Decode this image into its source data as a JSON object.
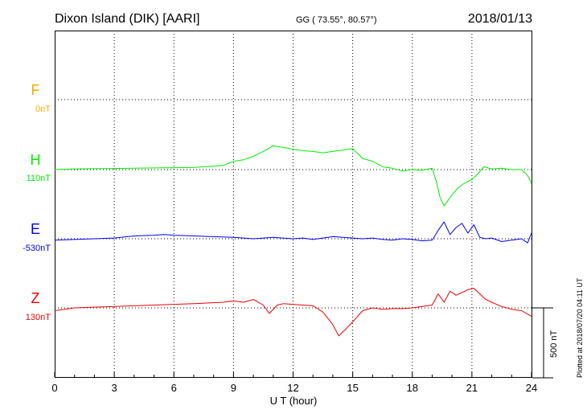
{
  "header": {
    "station": "Dixon Island (DIK)  [AARI]",
    "coords": "GG ( 73.55°,  80.57°)",
    "date": "2018/01/13"
  },
  "footer": {
    "plotted": "Plotted at 2018/07/20 04:11 UT"
  },
  "chart_data": {
    "type": "line",
    "xlabel": "U T (hour)",
    "xlim": [
      0,
      24
    ],
    "xticks": [
      "0",
      "3",
      "6",
      "9",
      "12",
      "15",
      "18",
      "21",
      "24"
    ],
    "grid": true,
    "scale_bar": "500 nT",
    "series": [
      {
        "name": "F",
        "offset": "0nT",
        "color": "#ffaa00",
        "x": [],
        "y": []
      },
      {
        "name": "H",
        "offset": "110nT",
        "color": "#00ee00",
        "x": [
          0,
          1,
          3,
          5,
          7,
          8.5,
          9,
          9.5,
          10,
          10.5,
          11,
          11.5,
          12,
          12.5,
          13,
          13.5,
          14,
          14.5,
          15,
          15.5,
          16,
          16.5,
          17,
          17.5,
          18,
          18.5,
          19,
          19.2,
          19.4,
          19.6,
          19.8,
          20,
          20.3,
          20.6,
          21,
          21.3,
          21.6,
          22,
          22.5,
          23,
          23.5,
          23.8,
          24
        ],
        "y": [
          0,
          5,
          8,
          12,
          15,
          30,
          60,
          70,
          95,
          130,
          170,
          160,
          145,
          135,
          130,
          120,
          130,
          140,
          150,
          80,
          60,
          20,
          10,
          -10,
          0,
          -5,
          10,
          -80,
          -200,
          -260,
          -220,
          -180,
          -130,
          -100,
          -70,
          -30,
          20,
          5,
          10,
          0,
          0,
          -40,
          -100
        ]
      },
      {
        "name": "E",
        "offset": "-530nT",
        "color": "#0000ee",
        "x": [
          0,
          1,
          2,
          3,
          4,
          5,
          5.5,
          6,
          7,
          8,
          9,
          9.5,
          10,
          10.5,
          11,
          11.5,
          12,
          12.5,
          13,
          13.5,
          14,
          14.5,
          15,
          15.5,
          16,
          16.5,
          17,
          17.5,
          18,
          18.5,
          19,
          19.3,
          19.6,
          19.9,
          20.2,
          20.5,
          20.8,
          21.1,
          21.4,
          21.7,
          22,
          22.5,
          23,
          23.5,
          23.8,
          24
        ],
        "y": [
          -10,
          -5,
          0,
          5,
          20,
          25,
          30,
          25,
          20,
          15,
          10,
          5,
          0,
          5,
          10,
          5,
          0,
          5,
          -5,
          5,
          15,
          10,
          5,
          0,
          5,
          -5,
          -10,
          0,
          -5,
          -15,
          -10,
          60,
          120,
          30,
          80,
          110,
          40,
          100,
          10,
          0,
          5,
          -20,
          -10,
          0,
          -30,
          40
        ]
      },
      {
        "name": "Z",
        "offset": "130nT",
        "color": "#ee0000",
        "x": [
          0,
          1,
          3,
          5,
          7,
          8.5,
          9,
          9.5,
          10,
          10.5,
          10.8,
          11.2,
          11.5,
          12,
          12.5,
          13,
          13.5,
          14,
          14.3,
          14.6,
          15,
          15.5,
          16,
          16.5,
          17,
          17.5,
          18,
          18.5,
          19,
          19.3,
          19.6,
          19.9,
          20.2,
          20.5,
          20.8,
          21.1,
          21.4,
          21.7,
          22,
          22.5,
          23,
          23.5,
          24
        ],
        "y": [
          -20,
          0,
          10,
          20,
          30,
          40,
          50,
          40,
          60,
          20,
          -40,
          20,
          30,
          25,
          20,
          15,
          -30,
          -120,
          -200,
          -160,
          -100,
          -20,
          0,
          -10,
          -5,
          -5,
          0,
          10,
          20,
          100,
          40,
          120,
          90,
          110,
          130,
          140,
          100,
          60,
          40,
          10,
          -10,
          -20,
          -60
        ]
      }
    ]
  }
}
